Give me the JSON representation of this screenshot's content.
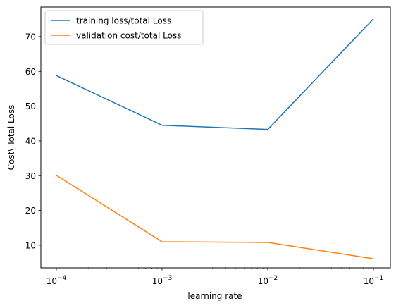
{
  "chart_data": {
    "type": "line",
    "x_scale": "log",
    "x": [
      0.0001,
      0.001,
      0.01,
      0.1
    ],
    "x_ticks": [
      {
        "value": 0.0001,
        "base": "10",
        "exp": "−4"
      },
      {
        "value": 0.001,
        "base": "10",
        "exp": "−3"
      },
      {
        "value": 0.01,
        "base": "10",
        "exp": "−2"
      },
      {
        "value": 0.1,
        "base": "10",
        "exp": "−1"
      }
    ],
    "y_ticks": [
      "10",
      "20",
      "30",
      "40",
      "50",
      "60",
      "70"
    ],
    "xlabel": "learning rate",
    "ylabel": "Cost\\ Total Loss",
    "ylim": [
      3.5,
      78.5
    ],
    "grid": false,
    "legend_position": "upper-left",
    "series": [
      {
        "name": "training loss/total Loss",
        "color": "#1f77b4",
        "values": [
          58.8,
          44.5,
          43.3,
          75.1
        ]
      },
      {
        "name": "validation cost/total Loss",
        "color": "#ff7f0e",
        "values": [
          30.1,
          11.0,
          10.8,
          6.1
        ]
      }
    ]
  }
}
